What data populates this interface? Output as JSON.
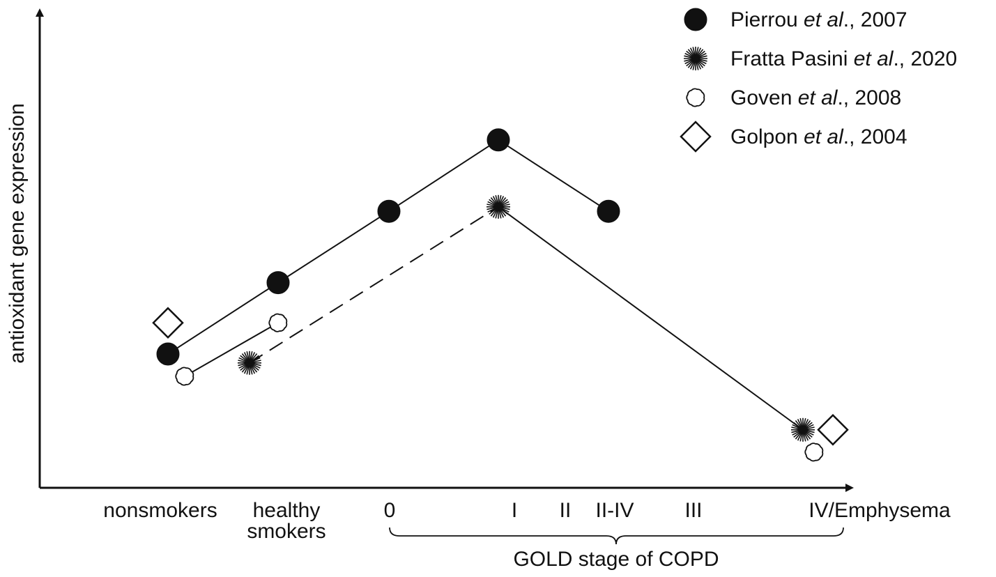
{
  "chart_data": {
    "type": "line",
    "ylabel": "antioxidant gene expression",
    "xlabel_group": "GOLD stage of COPD",
    "categories": [
      {
        "key": "nonsmokers",
        "lines": [
          "nonsmokers"
        ]
      },
      {
        "key": "healthy",
        "lines": [
          "healthy",
          "smokers"
        ]
      },
      {
        "key": "g0",
        "lines": [
          "0"
        ]
      },
      {
        "key": "gI",
        "lines": [
          "I"
        ]
      },
      {
        "key": "gII",
        "lines": [
          "II"
        ]
      },
      {
        "key": "gIIIV",
        "lines": [
          "II-IV"
        ]
      },
      {
        "key": "gIII",
        "lines": [
          "III"
        ]
      },
      {
        "key": "gIV",
        "lines": [
          "IV/Emphysema"
        ]
      }
    ],
    "ylim": [
      0,
      10
    ],
    "series": [
      {
        "name": "Pierrou et al., 2007",
        "name_parts": [
          "Pierrou ",
          "et al",
          "., 2007"
        ],
        "marker": "circle",
        "points": [
          {
            "cat": "nonsmokers",
            "y": 3.0,
            "dx": 0.15
          },
          {
            "cat": "healthy",
            "y": 4.6
          },
          {
            "cat": "g0",
            "y": 6.2
          },
          {
            "cat": "gI",
            "y": 7.8
          },
          {
            "cat": "gIIIV",
            "y": 6.2
          }
        ],
        "segments": [
          {
            "from": 0,
            "to": 4,
            "dash": false
          }
        ]
      },
      {
        "name": "Fratta Pasini et al., 2020",
        "name_parts": [
          "Fratta Pasini ",
          "et al",
          "., 2020"
        ],
        "marker": "star",
        "points": [
          {
            "cat": "nonsmokers",
            "y": 2.8,
            "dx": 1.0
          },
          {
            "cat": "gI",
            "y": 6.3
          },
          {
            "cat": "gIV",
            "y": 1.3,
            "dx": -0.08
          }
        ],
        "segments": [
          {
            "from": 0,
            "to": 1,
            "dash": true
          },
          {
            "from": 1,
            "to": 2,
            "dash": false
          }
        ]
      },
      {
        "name": "Goven et al., 2008",
        "name_parts": [
          "Goven ",
          "et al",
          "., 2008"
        ],
        "marker": "cloud",
        "points": [
          {
            "cat": "nonsmokers",
            "y": 2.5,
            "dx": 0.3
          },
          {
            "cat": "healthy",
            "y": 3.7
          },
          {
            "cat": "gIV",
            "y": 0.8,
            "dx": -0.15
          }
        ],
        "segments": [
          {
            "from": 0,
            "to": 1,
            "dash": false
          }
        ]
      },
      {
        "name": "Golpon et al., 2004",
        "name_parts": [
          "Golpon ",
          "et al",
          "., 2004"
        ],
        "marker": "diamond",
        "points": [
          {
            "cat": "nonsmokers",
            "y": 3.7,
            "dx": 0.1
          },
          {
            "cat": "gIV",
            "y": 1.3,
            "dx": 0.15
          }
        ],
        "segments": []
      }
    ],
    "legend_position": "top-right",
    "grid": false
  }
}
